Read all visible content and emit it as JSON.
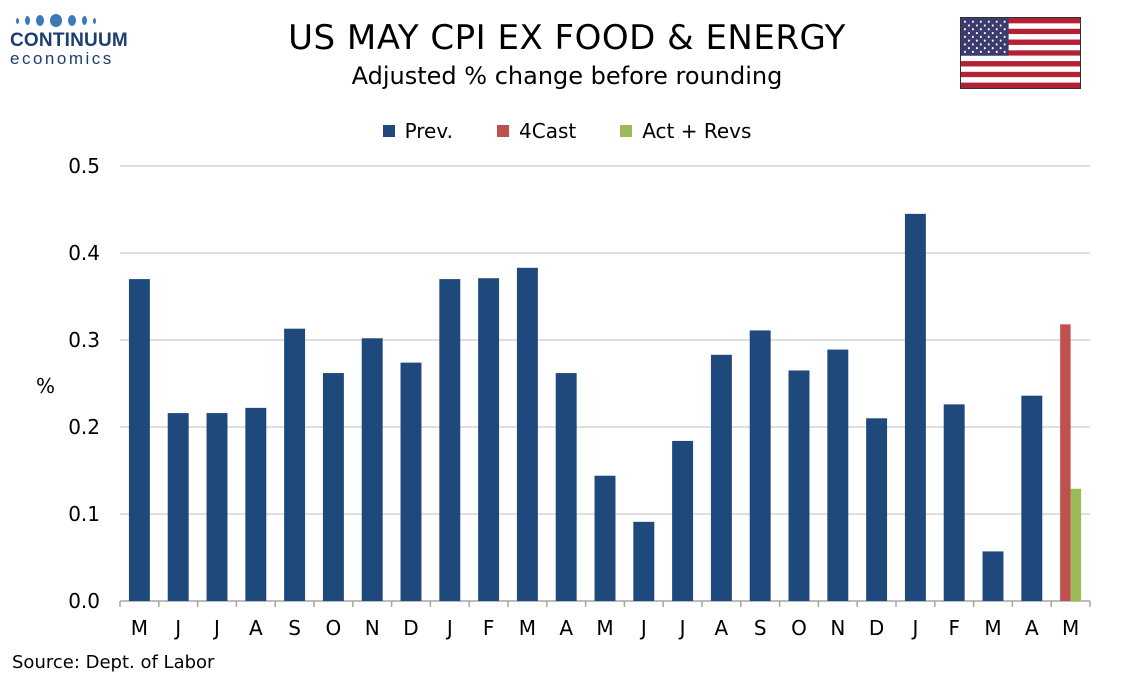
{
  "logo": {
    "name": "CONTINUUM",
    "sub": "economics"
  },
  "title": "US MAY CPI EX FOOD & ENERGY",
  "subtitle": "Adjusted % change before rounding",
  "source": "Source: Dept. of Labor",
  "colors": {
    "prev": "#1f497d",
    "fcst": "#c0504d",
    "act": "#9bbb59",
    "grid": "#bfbfbf",
    "flag_red": "#b22234",
    "flag_blue": "#3c3b6e"
  },
  "chart_data": {
    "type": "bar",
    "title": "US MAY CPI EX FOOD & ENERGY",
    "subtitle": "Adjusted % change before rounding",
    "xlabel": "",
    "ylabel": "%",
    "ylim": [
      0,
      0.5
    ],
    "yticks": [
      "0.0",
      "0.1",
      "0.2",
      "0.3",
      "0.4",
      "0.5"
    ],
    "grid": true,
    "legend_position": "top-center",
    "categories": [
      "M",
      "J",
      "J",
      "A",
      "S",
      "O",
      "N",
      "D",
      "J",
      "F",
      "M",
      "A",
      "M",
      "J",
      "J",
      "A",
      "S",
      "O",
      "N",
      "D",
      "J",
      "F",
      "M",
      "A",
      "M"
    ],
    "series": [
      {
        "name": "Prev.",
        "values": [
          0.37,
          0.216,
          0.216,
          0.222,
          0.313,
          0.262,
          0.302,
          0.274,
          0.37,
          0.371,
          0.383,
          0.262,
          0.144,
          0.091,
          0.184,
          0.283,
          0.311,
          0.265,
          0.289,
          0.21,
          0.445,
          0.226,
          0.057,
          0.236,
          null
        ]
      },
      {
        "name": "4Cast",
        "values": [
          null,
          null,
          null,
          null,
          null,
          null,
          null,
          null,
          null,
          null,
          null,
          null,
          null,
          null,
          null,
          null,
          null,
          null,
          null,
          null,
          null,
          null,
          null,
          null,
          0.318
        ]
      },
      {
        "name": "Act + Revs",
        "values": [
          null,
          null,
          null,
          null,
          null,
          null,
          null,
          null,
          null,
          null,
          null,
          null,
          null,
          null,
          null,
          null,
          null,
          null,
          null,
          null,
          null,
          null,
          null,
          null,
          0.129
        ]
      }
    ]
  }
}
